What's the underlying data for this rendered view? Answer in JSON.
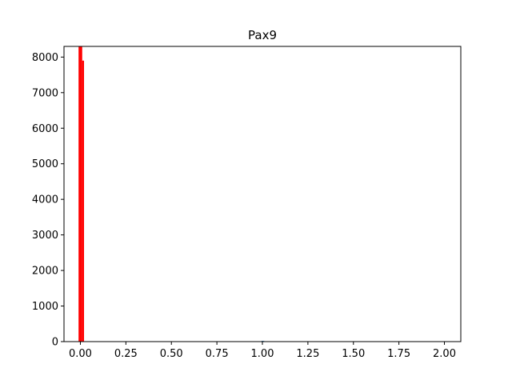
{
  "chart_data": {
    "type": "bar",
    "title": "Pax9",
    "xlabel": "",
    "ylabel": "",
    "xlim": [
      -0.09,
      2.09
    ],
    "ylim": [
      0,
      8300
    ],
    "x_ticks": [
      "0.00",
      "0.25",
      "0.50",
      "0.75",
      "1.00",
      "1.25",
      "1.50",
      "1.75",
      "2.00"
    ],
    "x_tick_values": [
      0,
      0.25,
      0.5,
      0.75,
      1.0,
      1.25,
      1.5,
      1.75,
      2.0
    ],
    "y_ticks": [
      "0",
      "1000",
      "2000",
      "3000",
      "4000",
      "5000",
      "6000",
      "7000",
      "8000"
    ],
    "y_tick_values": [
      0,
      1000,
      2000,
      3000,
      4000,
      5000,
      6000,
      7000,
      8000
    ],
    "grid": false,
    "legend": "none",
    "series": [
      {
        "color": "#ff0000",
        "bars": [
          {
            "x0": -0.01,
            "x1": 0.0,
            "value": 8300
          },
          {
            "x0": 0.0,
            "x1": 0.01,
            "value": 8300
          },
          {
            "x0": 0.01,
            "x1": 0.02,
            "value": 7900
          }
        ]
      },
      {
        "color": "#1f77b4",
        "bars": [
          {
            "x0": 0.995,
            "x1": 1.01,
            "value": 20
          }
        ]
      }
    ]
  }
}
